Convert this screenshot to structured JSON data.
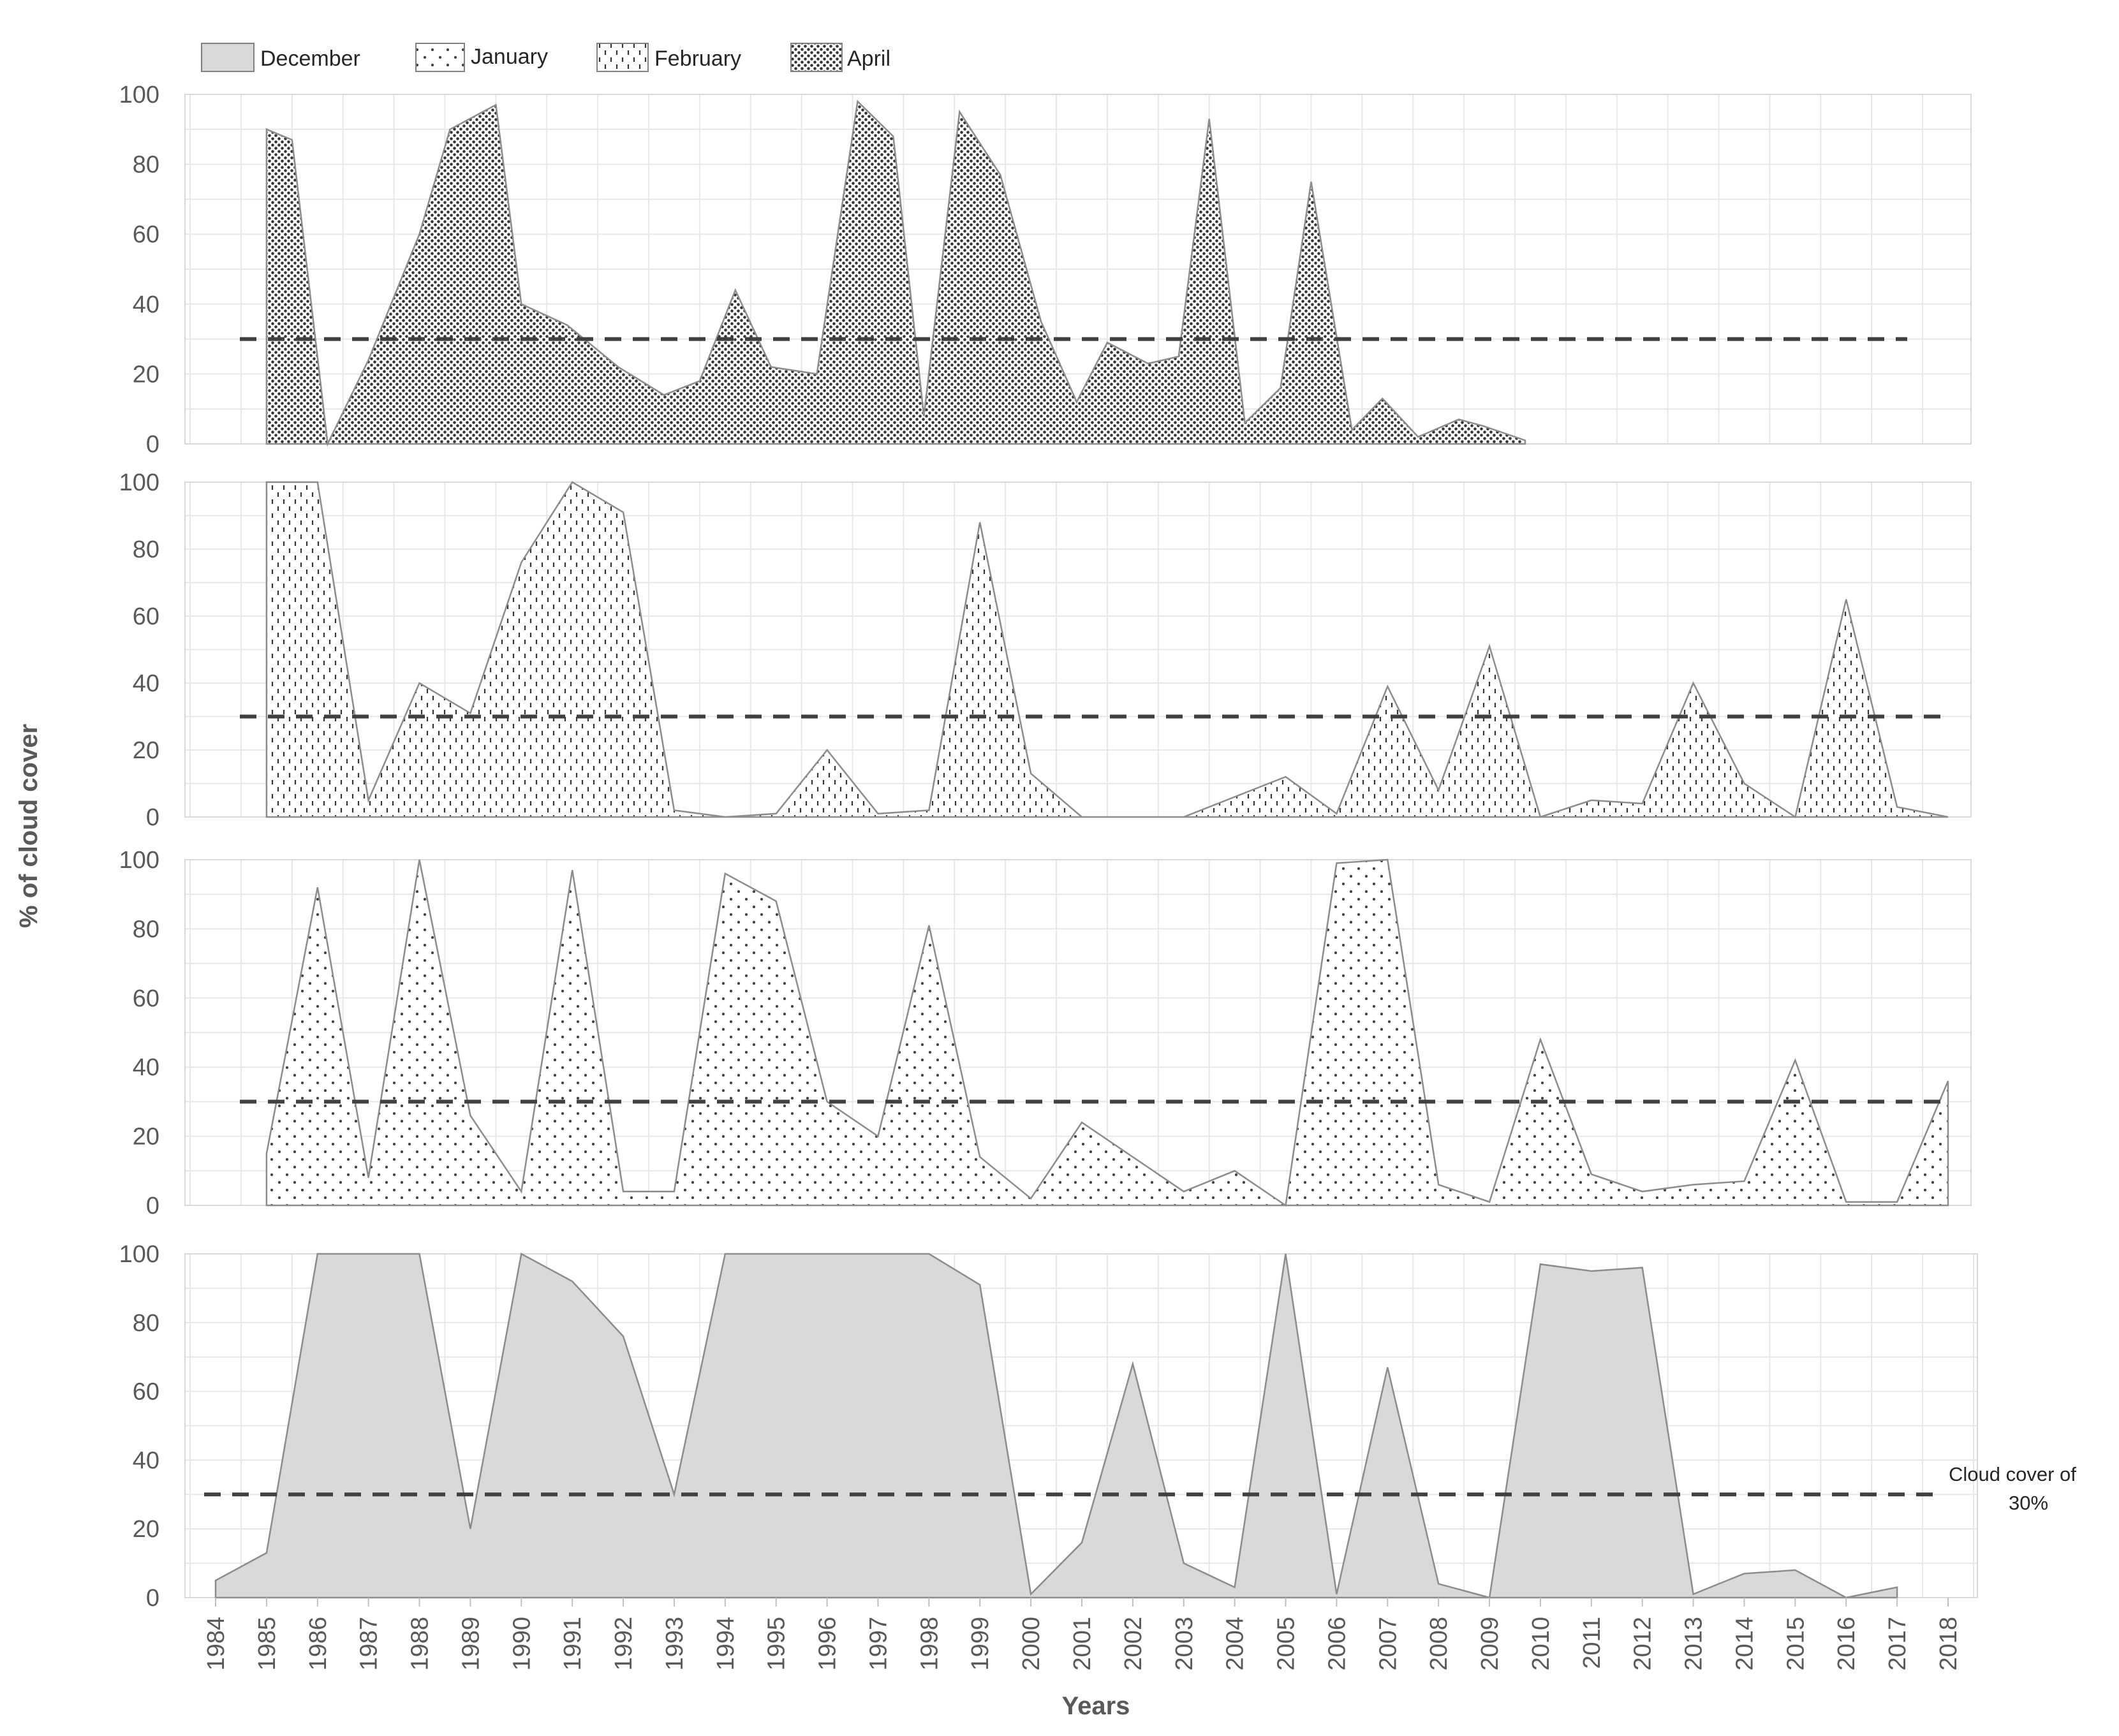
{
  "chart_data": {
    "type": "area",
    "ylabel": "% of cloud cover",
    "xlabel": "Years",
    "ylim": [
      0,
      100
    ],
    "y_ticks": [
      "0",
      "20",
      "40",
      "60",
      "80",
      "100"
    ],
    "x": [
      "1984",
      "1985",
      "1986",
      "1987",
      "1988",
      "1989",
      "1990",
      "1991",
      "1992",
      "1993",
      "1994",
      "1995",
      "1996",
      "1997",
      "1998",
      "1999",
      "2000",
      "2001",
      "2002",
      "2003",
      "2004",
      "2005",
      "2006",
      "2007",
      "2008",
      "2009",
      "2010",
      "2011",
      "2012",
      "2013",
      "2014",
      "2015",
      "2016",
      "2017",
      "2018"
    ],
    "threshold": {
      "value": 30,
      "label_line1": "Cloud cover of",
      "label_line2": "30%"
    },
    "legend": [
      "December",
      "January",
      "February",
      "April"
    ],
    "grid": true,
    "panels": [
      {
        "series": "April",
        "points": [
          [
            1985,
            90
          ],
          [
            1985.5,
            87
          ],
          [
            1986.2,
            0
          ],
          [
            1987,
            24
          ],
          [
            1988,
            60
          ],
          [
            1988.6,
            90
          ],
          [
            1989.5,
            97
          ],
          [
            1990,
            40
          ],
          [
            1990.9,
            34
          ],
          [
            1991.9,
            22
          ],
          [
            1992.8,
            14
          ],
          [
            1993.5,
            18
          ],
          [
            1994.2,
            44
          ],
          [
            1994.9,
            22
          ],
          [
            1995.8,
            20
          ],
          [
            1996.6,
            98
          ],
          [
            1997.3,
            88
          ],
          [
            1997.9,
            8
          ],
          [
            1998.6,
            95
          ],
          [
            1999.4,
            77
          ],
          [
            2000.2,
            35
          ],
          [
            2000.9,
            12
          ],
          [
            2001.5,
            29
          ],
          [
            2002.3,
            23
          ],
          [
            2002.9,
            25
          ],
          [
            2003.5,
            93
          ],
          [
            2004.2,
            6
          ],
          [
            2004.9,
            16
          ],
          [
            2005.5,
            75
          ],
          [
            2006.3,
            4
          ],
          [
            2006.9,
            13
          ],
          [
            2007.6,
            2
          ],
          [
            2008.4,
            7
          ],
          [
            2008.9,
            5
          ],
          [
            2009.7,
            1
          ]
        ]
      },
      {
        "series": "February",
        "points": [
          [
            1985,
            100
          ],
          [
            1986,
            100
          ],
          [
            1987,
            5
          ],
          [
            1988,
            40
          ],
          [
            1989,
            31
          ],
          [
            1990,
            76
          ],
          [
            1991,
            100
          ],
          [
            1992,
            91
          ],
          [
            1993,
            2
          ],
          [
            1994,
            0
          ],
          [
            1995,
            1
          ],
          [
            1996,
            20
          ],
          [
            1997,
            1
          ],
          [
            1998,
            2
          ],
          [
            1999,
            88
          ],
          [
            2000,
            13
          ],
          [
            2001,
            0
          ],
          [
            2002,
            0
          ],
          [
            2003,
            0
          ],
          [
            2004,
            6
          ],
          [
            2005,
            12
          ],
          [
            2006,
            1
          ],
          [
            2007,
            39
          ],
          [
            2008,
            8
          ],
          [
            2009,
            51
          ],
          [
            2010,
            0
          ],
          [
            2011,
            5
          ],
          [
            2012,
            4
          ],
          [
            2013,
            40
          ],
          [
            2014,
            10
          ],
          [
            2015,
            0
          ],
          [
            2016,
            65
          ],
          [
            2017,
            3
          ],
          [
            2018,
            0
          ]
        ]
      },
      {
        "series": "January",
        "points": [
          [
            1985,
            15
          ],
          [
            1986,
            92
          ],
          [
            1987,
            8
          ],
          [
            1988,
            100
          ],
          [
            1989,
            26
          ],
          [
            1990,
            4
          ],
          [
            1991,
            97
          ],
          [
            1992,
            4
          ],
          [
            1993,
            4
          ],
          [
            1994,
            96
          ],
          [
            1995,
            88
          ],
          [
            1996,
            30
          ],
          [
            1997,
            20
          ],
          [
            1998,
            81
          ],
          [
            1999,
            14
          ],
          [
            2000,
            2
          ],
          [
            2001,
            24
          ],
          [
            2002,
            14
          ],
          [
            2003,
            4
          ],
          [
            2004,
            10
          ],
          [
            2005,
            0
          ],
          [
            2006,
            99
          ],
          [
            2007,
            100
          ],
          [
            2008,
            6
          ],
          [
            2009,
            1
          ],
          [
            2010,
            48
          ],
          [
            2011,
            9
          ],
          [
            2012,
            4
          ],
          [
            2013,
            6
          ],
          [
            2014,
            7
          ],
          [
            2015,
            42
          ],
          [
            2016,
            1
          ],
          [
            2017,
            1
          ],
          [
            2018,
            36
          ]
        ]
      },
      {
        "series": "December",
        "points": [
          [
            1984,
            5
          ],
          [
            1985,
            13
          ],
          [
            1986,
            100
          ],
          [
            1987,
            100
          ],
          [
            1988,
            100
          ],
          [
            1989,
            20
          ],
          [
            1990,
            100
          ],
          [
            1991,
            92
          ],
          [
            1992,
            76
          ],
          [
            1993,
            30
          ],
          [
            1994,
            100
          ],
          [
            1995,
            100
          ],
          [
            1996,
            100
          ],
          [
            1997,
            100
          ],
          [
            1998,
            100
          ],
          [
            1999,
            91
          ],
          [
            2000,
            1
          ],
          [
            2001,
            16
          ],
          [
            2002,
            68
          ],
          [
            2003,
            10
          ],
          [
            2004,
            3
          ],
          [
            2005,
            100
          ],
          [
            2006,
            1
          ],
          [
            2007,
            67
          ],
          [
            2008,
            4
          ],
          [
            2009,
            0
          ],
          [
            2010,
            97
          ],
          [
            2011,
            95
          ],
          [
            2012,
            96
          ],
          [
            2013,
            1
          ],
          [
            2014,
            7
          ],
          [
            2015,
            8
          ],
          [
            2016,
            0
          ],
          [
            2017,
            3
          ]
        ]
      }
    ]
  }
}
